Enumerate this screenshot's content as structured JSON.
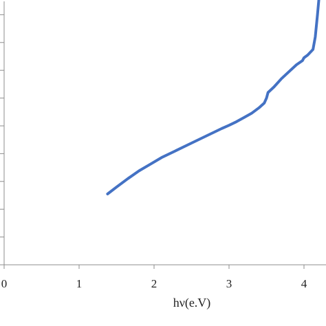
{
  "chart_data": {
    "type": "line",
    "title": "",
    "xlabel": "hν(e.V)",
    "ylabel": "",
    "xlim": [
      0,
      4.3
    ],
    "ylim": [
      0,
      9.5
    ],
    "x_ticks": [
      0,
      1,
      2,
      3,
      4
    ],
    "x_tick_labels": [
      "0",
      "1",
      "2",
      "3",
      "4"
    ],
    "y_ticks": [
      0,
      1,
      2,
      3,
      4,
      5,
      6,
      7,
      8,
      9
    ],
    "grid": false,
    "legend": "none",
    "series": [
      {
        "color": "#4472c4",
        "x": [
          1.38,
          1.5,
          1.65,
          1.8,
          1.95,
          2.1,
          2.3,
          2.5,
          2.7,
          2.9,
          3.0,
          3.1,
          3.2,
          3.3,
          3.4,
          3.47,
          3.5,
          3.52,
          3.6,
          3.7,
          3.8,
          3.9,
          3.98,
          4.0,
          4.05,
          4.12,
          4.15,
          4.18,
          4.2
        ],
        "y": [
          2.55,
          2.8,
          3.1,
          3.38,
          3.62,
          3.86,
          4.12,
          4.38,
          4.64,
          4.9,
          5.02,
          5.15,
          5.3,
          5.45,
          5.65,
          5.82,
          6.0,
          6.2,
          6.4,
          6.7,
          6.95,
          7.2,
          7.35,
          7.45,
          7.55,
          7.75,
          8.2,
          9.0,
          9.6
        ]
      }
    ]
  }
}
